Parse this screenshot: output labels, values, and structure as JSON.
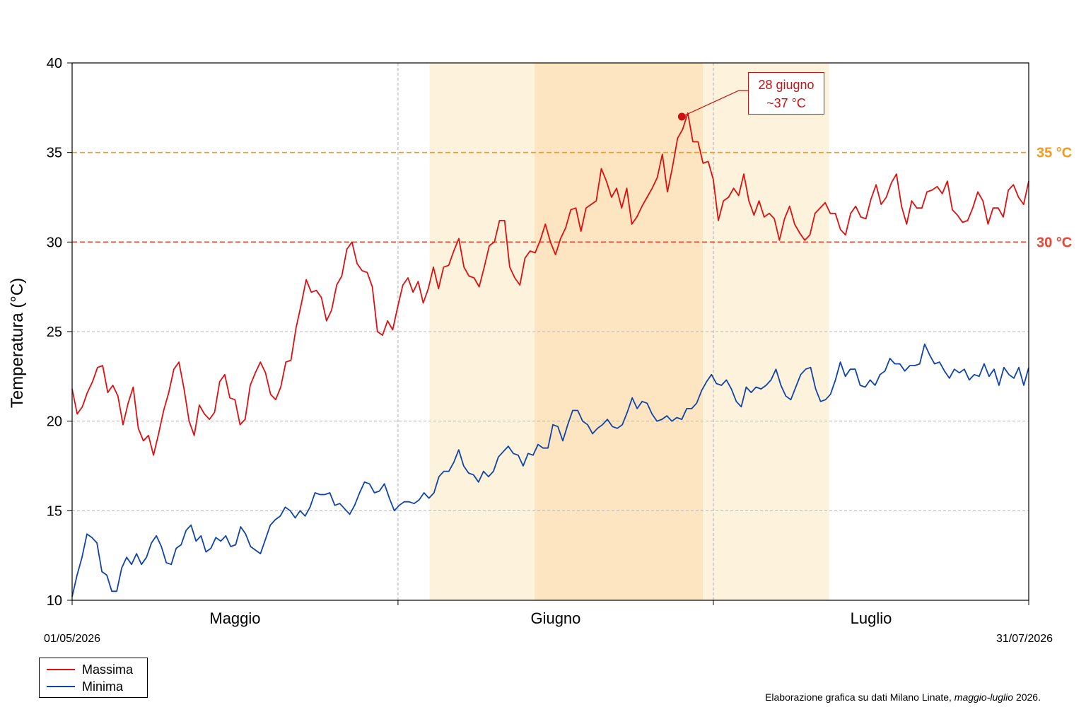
{
  "chart_data": {
    "type": "line",
    "ylabel": "Temperatura (°C)",
    "ylim": [
      10,
      40
    ],
    "yticks": [
      "10",
      "15",
      "20",
      "25",
      "30",
      "35",
      "40"
    ],
    "xlim": [
      "2026-05-01",
      "2026-07-31"
    ],
    "months": [
      "Maggio",
      "Giugno",
      "Luglio"
    ],
    "start_date_label": "01/05/2026",
    "end_date_label": "31/07/2026",
    "grid": true,
    "legend_position": "bottom-left",
    "thresholds": [
      {
        "value": 35,
        "label": "35 °C",
        "color": "#f59a1b"
      },
      {
        "value": 30,
        "label": "30 °C",
        "color": "#ee4433"
      }
    ],
    "shaded_periods": [
      {
        "from": "2026-06-04",
        "to": "2026-07-12",
        "color": "#fdf3dc"
      },
      {
        "from": "2026-06-14",
        "to": "2026-06-30",
        "color": "#fce5c0"
      }
    ],
    "annotation": {
      "date": "2026-06-28",
      "value": 37,
      "line1": "28 giugno",
      "line2": "~37 °C",
      "color": "#cc1111"
    },
    "series": [
      {
        "name": "Massima",
        "color": "#dd1111",
        "values": [
          21.8,
          20.4,
          20.8,
          21.6,
          22.2,
          23.0,
          23.1,
          21.6,
          22.0,
          21.4,
          19.8,
          21.0,
          21.9,
          19.6,
          18.9,
          19.2,
          18.1,
          19.3,
          20.6,
          21.6,
          22.9,
          23.3,
          21.8,
          20.0,
          19.2,
          20.9,
          20.4,
          20.1,
          20.5,
          22.2,
          22.6,
          21.3,
          21.2,
          19.8,
          20.1,
          22.0,
          22.7,
          23.3,
          22.7,
          21.5,
          21.2,
          21.9,
          23.3,
          23.4,
          25.2,
          26.5,
          27.9,
          27.2,
          27.3,
          26.9,
          25.6,
          26.2,
          27.6,
          28.1,
          29.6,
          30.0,
          28.8,
          28.4,
          28.3,
          27.5,
          25.0,
          24.8,
          25.6,
          25.1,
          26.4,
          27.6,
          28.0,
          27.2,
          27.8,
          26.6,
          27.4,
          28.6,
          27.4,
          28.6,
          28.7,
          29.5,
          30.2,
          28.6,
          28.1,
          28.0,
          27.5,
          28.6,
          29.8,
          30.0,
          31.2,
          31.2,
          28.6,
          28.0,
          27.6,
          29.1,
          29.5,
          29.4,
          30.1,
          31.0,
          30.0,
          29.3,
          30.2,
          30.8,
          31.8,
          31.9,
          30.6,
          31.9,
          32.1,
          32.3,
          34.1,
          33.4,
          32.5,
          33.0,
          31.9,
          33.0,
          31.0,
          31.4,
          32.0,
          32.5,
          33.0,
          33.6,
          34.9,
          32.8,
          34.2,
          35.8,
          36.3,
          37.2,
          35.6,
          35.6,
          34.4,
          34.5,
          33.5,
          31.2,
          32.3,
          32.5,
          33.0,
          32.6,
          33.8,
          32.3,
          31.5,
          32.3,
          31.4,
          31.6,
          31.3,
          30.1,
          31.3,
          32.0,
          31.0,
          30.5,
          30.1,
          30.4,
          31.6,
          31.9,
          32.2,
          31.6,
          31.6,
          30.7,
          30.4,
          31.6,
          32.0,
          31.4,
          31.3,
          32.4,
          33.2,
          32.1,
          32.5,
          33.3,
          33.8,
          32.0,
          31.0,
          32.3,
          31.9,
          31.9,
          32.8,
          32.9,
          33.1,
          32.7,
          33.4,
          31.8,
          31.5,
          31.1,
          31.2,
          31.9,
          32.8,
          32.3,
          31.0,
          31.9,
          31.9,
          31.4,
          32.9,
          33.2,
          32.5,
          32.1,
          33.4
        ]
      },
      {
        "name": "Minima",
        "color": "#1144aa",
        "values": [
          10.2,
          11.4,
          12.4,
          13.7,
          13.5,
          13.2,
          11.6,
          11.4,
          10.5,
          10.5,
          11.8,
          12.4,
          12.0,
          12.6,
          12.0,
          12.4,
          13.2,
          13.6,
          13.0,
          12.1,
          12.0,
          12.9,
          13.1,
          13.9,
          14.2,
          13.3,
          13.6,
          12.7,
          12.9,
          13.5,
          13.3,
          13.6,
          13.0,
          13.1,
          14.1,
          13.7,
          13.0,
          12.8,
          12.6,
          13.4,
          14.2,
          14.5,
          14.7,
          15.2,
          15.0,
          14.6,
          15.0,
          14.7,
          15.2,
          16.0,
          15.9,
          15.9,
          16.0,
          15.3,
          15.4,
          15.1,
          14.8,
          15.3,
          16.0,
          16.6,
          16.5,
          16.0,
          16.1,
          16.5,
          15.7,
          15.0,
          15.3,
          15.5,
          15.5,
          15.4,
          15.6,
          16.0,
          15.7,
          16.0,
          16.9,
          17.2,
          17.2,
          17.7,
          18.4,
          17.5,
          17.1,
          17.0,
          16.6,
          17.2,
          16.9,
          17.2,
          18.0,
          18.3,
          18.6,
          18.2,
          18.1,
          17.5,
          18.2,
          18.1,
          18.7,
          18.5,
          18.5,
          19.8,
          19.7,
          18.9,
          19.8,
          20.6,
          20.6,
          20.0,
          19.8,
          19.3,
          19.6,
          19.8,
          20.1,
          19.7,
          19.6,
          19.8,
          20.5,
          21.3,
          20.7,
          21.1,
          21.0,
          20.4,
          20.0,
          20.1,
          20.3,
          20.0,
          20.2,
          20.1,
          20.7,
          20.7,
          21.0,
          21.7,
          22.2,
          22.6,
          22.1,
          22.0,
          22.3,
          21.8,
          21.1,
          20.8,
          21.9,
          21.6,
          21.9,
          21.8,
          22.0,
          22.3,
          22.9,
          22.0,
          21.4,
          21.2,
          21.9,
          22.6,
          22.9,
          23.0,
          21.8,
          21.1,
          21.2,
          21.5,
          22.3,
          23.3,
          22.5,
          22.9,
          22.9,
          22.0,
          21.9,
          22.3,
          22.0,
          22.6,
          22.8,
          23.5,
          23.2,
          23.2,
          22.8,
          23.1,
          23.1,
          23.2,
          24.3,
          23.7,
          23.2,
          23.3,
          22.8,
          22.4,
          22.9,
          22.7,
          22.9,
          22.3,
          22.6,
          22.5,
          23.2,
          22.5,
          22.9,
          22.0,
          23.0,
          22.6,
          22.4,
          23.0,
          22.0,
          23.0
        ]
      }
    ]
  },
  "legend": {
    "items": [
      "Massima",
      "Minima"
    ]
  },
  "source": {
    "prefix": "Elaborazione grafica su dati Milano Linate, ",
    "period": "maggio-luglio",
    "suffix": " 2026."
  }
}
